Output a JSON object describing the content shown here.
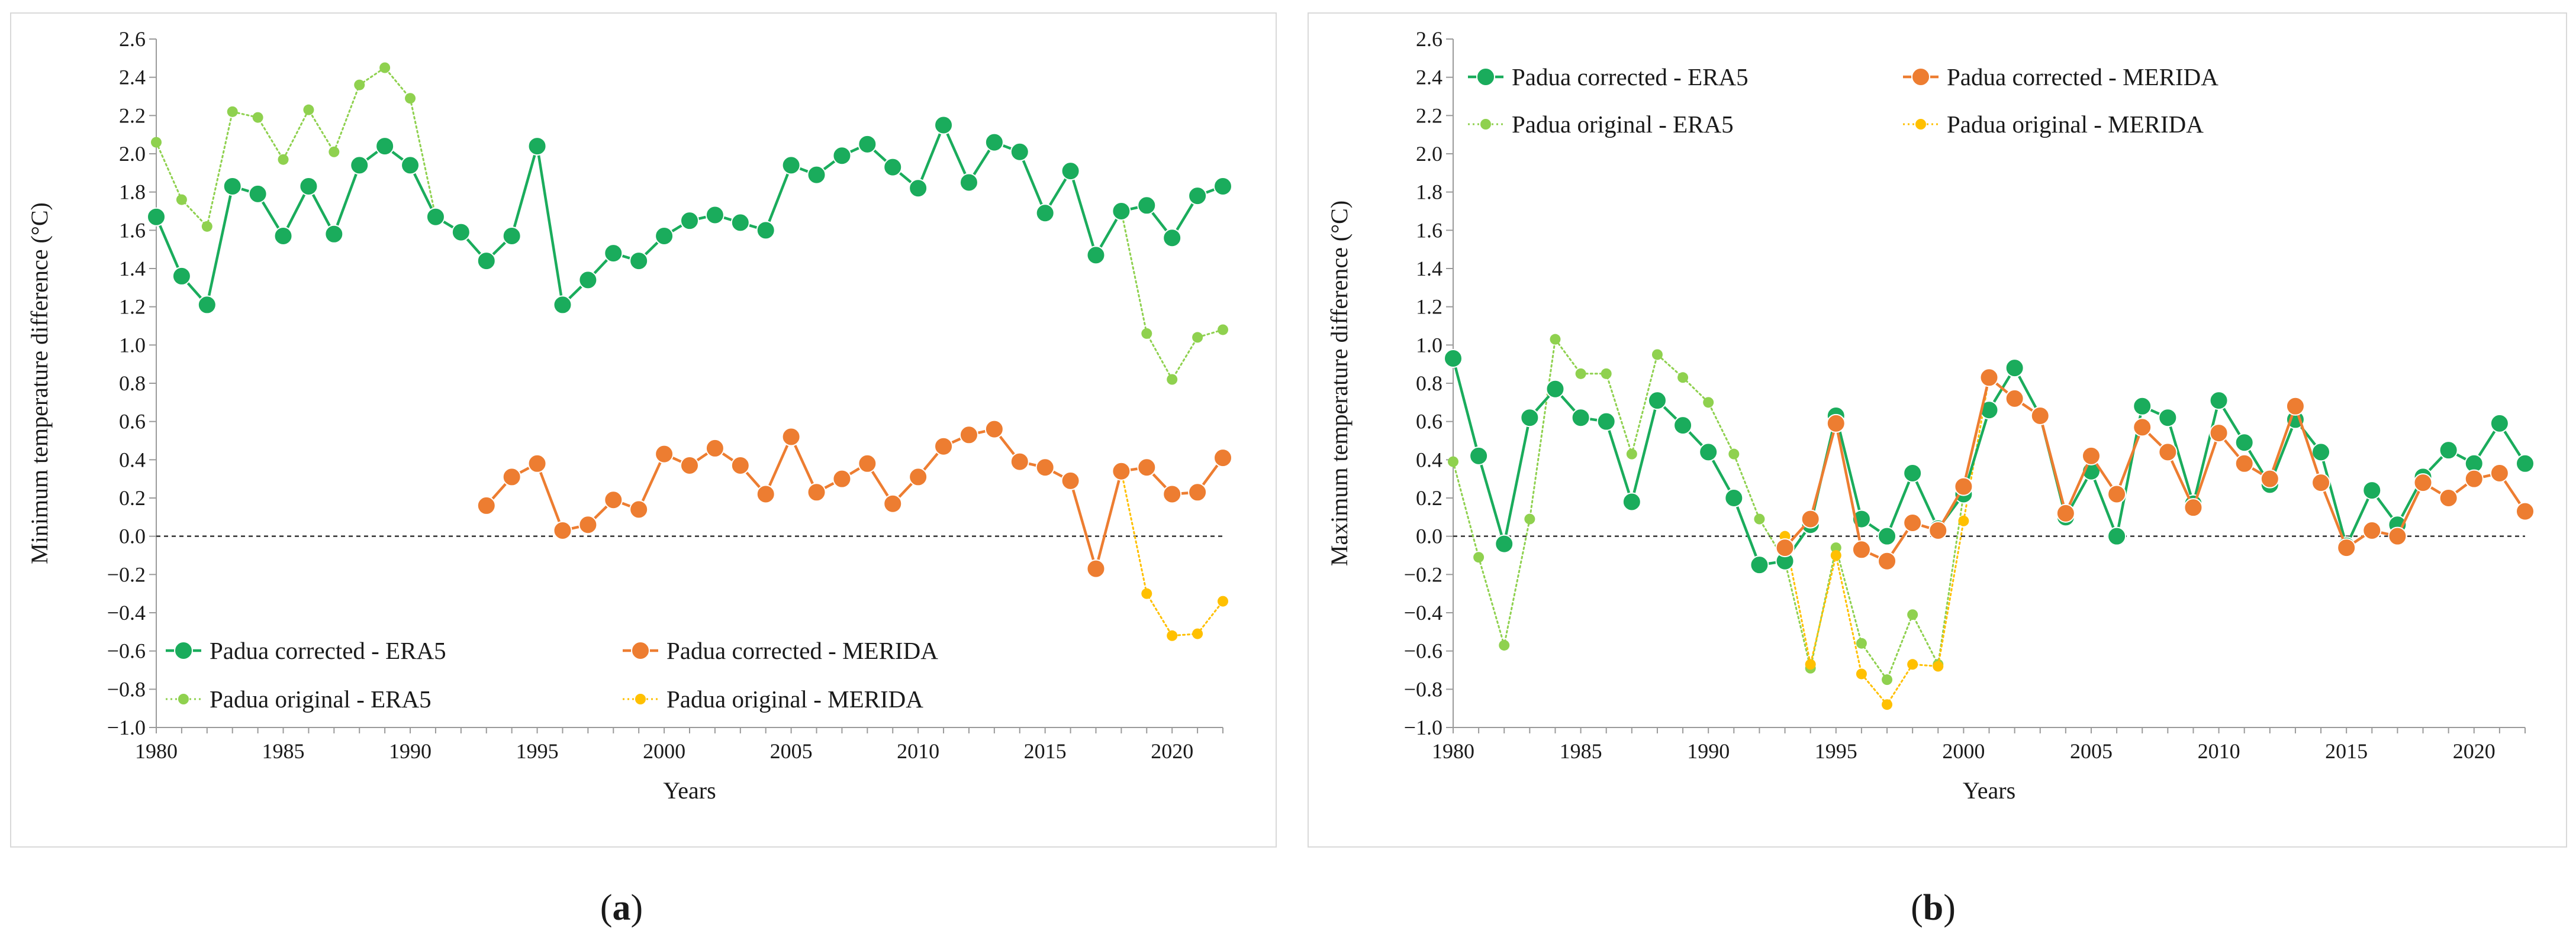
{
  "figure": {
    "panel_labels": [
      {
        "open": "(",
        "letter": "a",
        "close": ")"
      },
      {
        "open": "(",
        "letter": "b",
        "close": ")"
      }
    ]
  },
  "colors": {
    "corrected_era5": "#1aac5c",
    "corrected_era5_face": "#1aac5c",
    "original_era5": "#8fd14f",
    "corrected_merida": "#ed7d31",
    "original_merida": "#ffc000",
    "axis": "#9a9a9a",
    "zero_line": "#333333",
    "frame": "#d9d9d9"
  },
  "chart_data": [
    {
      "type": "line",
      "panel": "a",
      "title": "",
      "xlabel": "Years",
      "ylabel": "Minimum temperature difference (°C)",
      "xlim": [
        1980,
        2022
      ],
      "ylim": [
        -1.0,
        2.6
      ],
      "xticks": [
        1980,
        1985,
        1990,
        1995,
        2000,
        2005,
        2010,
        2015,
        2020
      ],
      "xtick_labels": [
        "1980",
        "1985",
        "1990",
        "1995",
        "2000",
        "2005",
        "2010",
        "2015",
        "2020"
      ],
      "yticks": [
        -1.0,
        -0.8,
        -0.6,
        -0.4,
        -0.2,
        0.0,
        0.2,
        0.4,
        0.6,
        0.8,
        1.0,
        1.2,
        1.4,
        1.6,
        1.8,
        2.0,
        2.2,
        2.4,
        2.6
      ],
      "ytick_labels": [
        "−1.0",
        "−0.8",
        "−0.6",
        "−0.4",
        "−0.2",
        "0.0",
        "0.2",
        "0.4",
        "0.6",
        "0.8",
        "1.0",
        "1.2",
        "1.4",
        "1.6",
        "1.8",
        "2.0",
        "2.2",
        "2.4",
        "2.6"
      ],
      "zero_line": true,
      "legend_position": "bottom-left",
      "legend": [
        "Padua corrected - ERA5",
        "Padua corrected - MERIDA",
        "Padua original - ERA5",
        "Padua original - MERIDA"
      ],
      "series": [
        {
          "name": "Padua corrected - ERA5",
          "style": "corrected",
          "color_key": "corrected_era5",
          "x": [
            1980,
            1981,
            1982,
            1983,
            1984,
            1985,
            1986,
            1987,
            1988,
            1989,
            1990,
            1991,
            1992,
            1993,
            1994,
            1995,
            1996,
            1997,
            1998,
            1999,
            2000,
            2001,
            2002,
            2003,
            2004,
            2005,
            2006,
            2007,
            2008,
            2009,
            2010,
            2011,
            2012,
            2013,
            2014,
            2015,
            2016,
            2017,
            2018,
            2019,
            2020,
            2021,
            2022
          ],
          "y": [
            1.67,
            1.36,
            1.21,
            1.83,
            1.79,
            1.57,
            1.83,
            1.58,
            1.94,
            2.04,
            1.94,
            1.67,
            1.59,
            1.44,
            1.57,
            2.04,
            1.21,
            1.34,
            1.48,
            1.44,
            1.57,
            1.65,
            1.68,
            1.64,
            1.6,
            1.94,
            1.89,
            1.99,
            2.05,
            1.93,
            1.82,
            2.15,
            1.85,
            2.06,
            2.01,
            1.69,
            1.91,
            1.47,
            1.7,
            1.73,
            1.56,
            1.78,
            1.83
          ]
        },
        {
          "name": "Padua corrected - MERIDA",
          "style": "corrected",
          "color_key": "corrected_merida",
          "x": [
            1993,
            1994,
            1995,
            1996,
            1997,
            1998,
            1999,
            2000,
            2001,
            2002,
            2003,
            2004,
            2005,
            2006,
            2007,
            2008,
            2009,
            2010,
            2011,
            2012,
            2013,
            2014,
            2015,
            2016,
            2017,
            2018,
            2019,
            2020,
            2021,
            2022
          ],
          "y": [
            0.16,
            0.31,
            0.38,
            0.03,
            0.06,
            0.19,
            0.14,
            0.43,
            0.37,
            0.46,
            0.37,
            0.22,
            0.52,
            0.23,
            0.3,
            0.38,
            0.17,
            0.31,
            0.47,
            0.53,
            0.56,
            0.39,
            0.36,
            0.29,
            -0.17,
            0.34,
            0.36,
            0.22,
            0.23,
            0.41
          ]
        },
        {
          "name": "Padua original - ERA5",
          "style": "original",
          "color_key": "original_era5",
          "x": [
            1980,
            1981,
            1982,
            1983,
            1984,
            1985,
            1986,
            1987,
            1988,
            1989,
            1990,
            1991,
            1992,
            1993,
            1994,
            1995,
            1996,
            1997,
            1998,
            1999,
            2000,
            2001,
            2002,
            2003,
            2004,
            2005,
            2006,
            2007,
            2008,
            2009,
            2010,
            2011,
            2012,
            2013,
            2014,
            2015,
            2016,
            2017,
            2018,
            2019,
            2020,
            2021,
            2022
          ],
          "y": [
            2.06,
            1.76,
            1.62,
            2.22,
            2.19,
            1.97,
            2.23,
            2.01,
            2.36,
            2.45,
            2.29,
            1.67,
            1.59,
            1.44,
            1.57,
            2.04,
            1.21,
            1.34,
            1.48,
            1.44,
            1.57,
            1.65,
            1.68,
            1.64,
            1.6,
            1.94,
            1.89,
            1.99,
            2.05,
            1.93,
            1.82,
            2.15,
            1.85,
            2.06,
            2.01,
            1.69,
            1.91,
            1.47,
            1.7,
            1.06,
            0.82,
            1.04,
            1.08
          ]
        },
        {
          "name": "Padua original - MERIDA",
          "style": "original",
          "color_key": "original_merida",
          "x": [
            1993,
            1994,
            1995,
            1996,
            1997,
            1998,
            1999,
            2000,
            2001,
            2002,
            2003,
            2004,
            2005,
            2006,
            2007,
            2008,
            2009,
            2010,
            2011,
            2012,
            2013,
            2014,
            2015,
            2016,
            2017,
            2018,
            2019,
            2020,
            2021,
            2022
          ],
          "y": [
            0.16,
            0.31,
            0.38,
            0.03,
            0.06,
            0.19,
            0.14,
            0.43,
            0.37,
            0.46,
            0.37,
            0.22,
            0.52,
            0.23,
            0.3,
            0.38,
            0.17,
            0.31,
            0.47,
            0.53,
            0.56,
            0.39,
            0.36,
            0.29,
            -0.17,
            0.34,
            -0.3,
            -0.52,
            -0.51,
            -0.34
          ]
        }
      ]
    },
    {
      "type": "line",
      "panel": "b",
      "title": "",
      "xlabel": "Years",
      "ylabel": "Maximum temperature difference (°C)",
      "xlim": [
        1980,
        2022
      ],
      "ylim": [
        -1.0,
        2.6
      ],
      "xticks": [
        1980,
        1985,
        1990,
        1995,
        2000,
        2005,
        2010,
        2015,
        2020
      ],
      "xtick_labels": [
        "1980",
        "1985",
        "1990",
        "1995",
        "2000",
        "2005",
        "2010",
        "2015",
        "2020"
      ],
      "yticks": [
        -1.0,
        -0.8,
        -0.6,
        -0.4,
        -0.2,
        0.0,
        0.2,
        0.4,
        0.6,
        0.8,
        1.0,
        1.2,
        1.4,
        1.6,
        1.8,
        2.0,
        2.2,
        2.4,
        2.6
      ],
      "ytick_labels": [
        "−1.0",
        "−0.8",
        "−0.6",
        "−0.4",
        "−0.2",
        "0.0",
        "0.2",
        "0.4",
        "0.6",
        "0.8",
        "1.0",
        "1.2",
        "1.4",
        "1.6",
        "1.8",
        "2.0",
        "2.2",
        "2.4",
        "2.6"
      ],
      "zero_line": true,
      "legend_position": "top-left",
      "legend": [
        "Padua corrected - ERA5",
        "Padua corrected - MERIDA",
        "Padua original - ERA5",
        "Padua original - MERIDA"
      ],
      "series": [
        {
          "name": "Padua corrected - ERA5",
          "style": "corrected",
          "color_key": "corrected_era5",
          "x": [
            1980,
            1981,
            1982,
            1983,
            1984,
            1985,
            1986,
            1987,
            1988,
            1989,
            1990,
            1991,
            1992,
            1993,
            1994,
            1995,
            1996,
            1997,
            1998,
            1999,
            2000,
            2001,
            2002,
            2003,
            2004,
            2005,
            2006,
            2007,
            2008,
            2009,
            2010,
            2011,
            2012,
            2013,
            2014,
            2015,
            2016,
            2017,
            2018,
            2019,
            2020,
            2021,
            2022
          ],
          "y": [
            0.93,
            0.42,
            -0.04,
            0.62,
            0.77,
            0.62,
            0.6,
            0.18,
            0.71,
            0.58,
            0.44,
            0.2,
            -0.15,
            -0.13,
            0.06,
            0.63,
            0.09,
            0.0,
            0.33,
            0.04,
            0.22,
            0.66,
            0.88,
            0.63,
            0.1,
            0.34,
            0.0,
            0.68,
            0.62,
            0.17,
            0.71,
            0.49,
            0.27,
            0.61,
            0.44,
            -0.05,
            0.24,
            0.06,
            0.31,
            0.45,
            0.38,
            0.59,
            0.38
          ]
        },
        {
          "name": "Padua corrected - MERIDA",
          "style": "corrected",
          "color_key": "corrected_merida",
          "x": [
            1993,
            1994,
            1995,
            1996,
            1997,
            1998,
            1999,
            2000,
            2001,
            2002,
            2003,
            2004,
            2005,
            2006,
            2007,
            2008,
            2009,
            2010,
            2011,
            2012,
            2013,
            2014,
            2015,
            2016,
            2017,
            2018,
            2019,
            2020,
            2021,
            2022
          ],
          "y": [
            -0.06,
            0.09,
            0.59,
            -0.07,
            -0.13,
            0.07,
            0.03,
            0.26,
            0.83,
            0.72,
            0.63,
            0.12,
            0.42,
            0.22,
            0.57,
            0.44,
            0.15,
            0.54,
            0.38,
            0.3,
            0.68,
            0.28,
            -0.06,
            0.03,
            0.0,
            0.28,
            0.2,
            0.3,
            0.33,
            0.13
          ]
        },
        {
          "name": "Padua original - ERA5",
          "style": "original",
          "color_key": "original_era5",
          "x": [
            1980,
            1981,
            1982,
            1983,
            1984,
            1985,
            1986,
            1987,
            1988,
            1989,
            1990,
            1991,
            1992,
            1993,
            1994,
            1995,
            1996,
            1997,
            1998,
            1999,
            2000,
            2001,
            2002,
            2003,
            2004,
            2005,
            2006,
            2007,
            2008,
            2009,
            2010,
            2011,
            2012,
            2013,
            2014,
            2015,
            2016,
            2017,
            2018,
            2019,
            2020,
            2021,
            2022
          ],
          "y": [
            0.39,
            -0.11,
            -0.57,
            0.09,
            1.03,
            0.85,
            0.85,
            0.43,
            0.95,
            0.83,
            0.7,
            0.43,
            0.09,
            -0.13,
            -0.69,
            -0.06,
            -0.56,
            -0.75,
            -0.41,
            -0.67,
            0.22,
            0.66,
            0.88,
            0.63,
            0.1,
            0.34,
            0.0,
            0.68,
            0.62,
            0.17,
            0.71,
            0.49,
            0.27,
            0.61,
            0.44,
            -0.05,
            0.24,
            0.06,
            0.31,
            0.45,
            0.38,
            0.59,
            0.38
          ]
        },
        {
          "name": "Padua original - MERIDA",
          "style": "original",
          "color_key": "original_merida",
          "x": [
            1993,
            1994,
            1995,
            1996,
            1997,
            1998,
            1999,
            2000,
            2001,
            2002,
            2003,
            2004,
            2005,
            2006,
            2007,
            2008,
            2009,
            2010,
            2011,
            2012,
            2013,
            2014,
            2015,
            2016,
            2017,
            2018,
            2019,
            2020,
            2021,
            2022
          ],
          "y": [
            0.0,
            -0.67,
            -0.1,
            -0.72,
            -0.88,
            -0.67,
            -0.68,
            0.08,
            0.83,
            0.72,
            0.63,
            0.12,
            0.42,
            0.22,
            0.57,
            0.44,
            0.15,
            0.54,
            0.38,
            0.3,
            0.68,
            0.28,
            -0.06,
            0.03,
            0.0,
            0.28,
            0.2,
            0.3,
            0.33,
            0.13
          ]
        }
      ]
    }
  ]
}
